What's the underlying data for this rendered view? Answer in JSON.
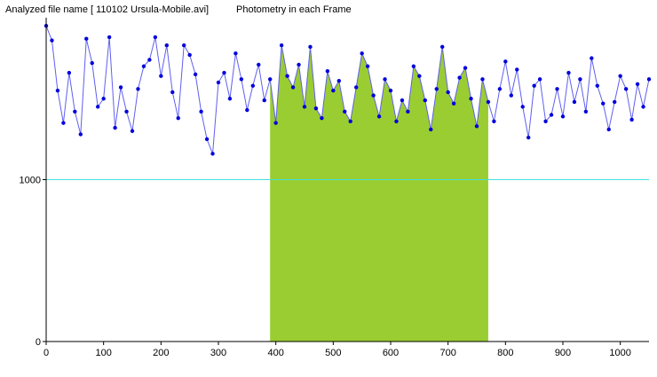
{
  "header": {
    "analyzed_label": "Analyzed file name [ 110102 Ursula-Mobile.avi]",
    "mode_label": "Photometry in each Frame"
  },
  "colors": {
    "series": "#0000dd",
    "line": "#5f5ff0",
    "fill": "#9acd32",
    "reference_line": "#40e0e0",
    "axis": "#000000"
  },
  "chart_data": {
    "type": "scatter",
    "title": "Photometry in each Frame",
    "xlim": [
      0,
      1050
    ],
    "ylim": [
      0,
      2000
    ],
    "xticks": [
      "0",
      "100",
      "200",
      "300",
      "400",
      "500",
      "600",
      "700",
      "800",
      "900",
      "1000"
    ],
    "yticks": [
      "0",
      "1000"
    ],
    "reference_line": {
      "y": 1000,
      "label": "1000"
    },
    "grid": false,
    "filled_region": {
      "x_start": 388,
      "x_end": 775,
      "color": "yellowgreen"
    },
    "series": [
      {
        "x": [
          0,
          10,
          20,
          30,
          40,
          50,
          60,
          70,
          80,
          90,
          100,
          110,
          120,
          130,
          140,
          150,
          160,
          170,
          180,
          190,
          200,
          210,
          220,
          230,
          240,
          250,
          260,
          270,
          280,
          290,
          300,
          310,
          320,
          330,
          340,
          350,
          360,
          370,
          380,
          390,
          400,
          410,
          420,
          430,
          440,
          450,
          460,
          470,
          480,
          490,
          500,
          510,
          520,
          530,
          540,
          550,
          560,
          570,
          580,
          590,
          600,
          610,
          620,
          630,
          640,
          650,
          660,
          670,
          680,
          690,
          700,
          710,
          720,
          730,
          740,
          750,
          760,
          770,
          780,
          790,
          800,
          810,
          820,
          830,
          840,
          850,
          860,
          870,
          880,
          890,
          900,
          910,
          920,
          930,
          940,
          950,
          960,
          970,
          980,
          990,
          1000,
          1010,
          1020,
          1030,
          1040,
          1050
        ],
        "y": [
          1950,
          1860,
          1550,
          1350,
          1660,
          1420,
          1280,
          1870,
          1720,
          1450,
          1500,
          1880,
          1320,
          1570,
          1420,
          1300,
          1560,
          1700,
          1740,
          1880,
          1640,
          1830,
          1540,
          1380,
          1830,
          1770,
          1650,
          1420,
          1250,
          1160,
          1600,
          1660,
          1500,
          1780,
          1620,
          1430,
          1580,
          1710,
          1490,
          1620,
          1350,
          1830,
          1640,
          1570,
          1710,
          1450,
          1820,
          1440,
          1380,
          1670,
          1550,
          1610,
          1420,
          1360,
          1570,
          1780,
          1700,
          1520,
          1390,
          1620,
          1550,
          1360,
          1490,
          1420,
          1700,
          1640,
          1490,
          1310,
          1560,
          1820,
          1540,
          1470,
          1630,
          1690,
          1500,
          1330,
          1620,
          1480,
          1360,
          1560,
          1730,
          1520,
          1680,
          1450,
          1260,
          1580,
          1620,
          1360,
          1400,
          1560,
          1390,
          1660,
          1480,
          1620,
          1420,
          1750,
          1580,
          1470,
          1310,
          1480,
          1640,
          1560,
          1370,
          1590,
          1450,
          1620
        ]
      }
    ]
  }
}
